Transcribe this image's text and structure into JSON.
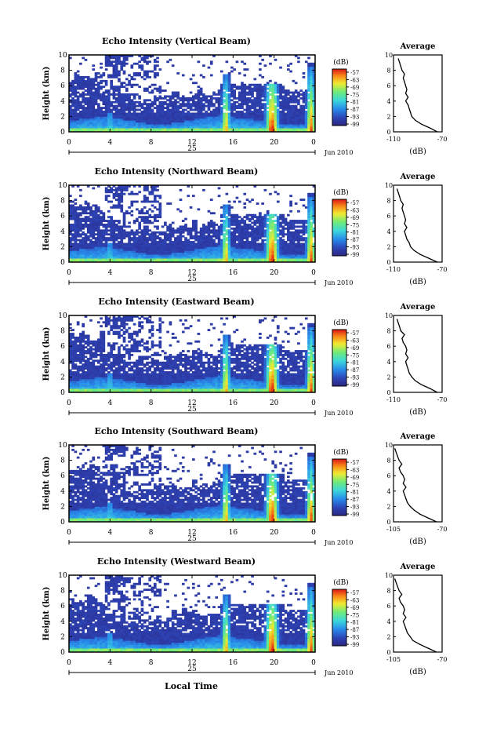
{
  "figure": {
    "xlabel": "Local Time",
    "panel_ylabel": "Height (km)",
    "colorbar_unit": "(dB)",
    "avg_title": "Average",
    "avg_xlabel": "(dB)",
    "day_label": "25",
    "month_label": "Jun 2010"
  },
  "chart_data": [
    {
      "type": "heatmap",
      "title": "Echo Intensity (Vertical Beam)",
      "ylabel": "Height (km)",
      "x_ticks": [
        "0",
        "4",
        "8",
        "12",
        "16",
        "20",
        "0"
      ],
      "x_range": [
        0,
        24
      ],
      "y_ticks": [
        "0",
        "2",
        "4",
        "6",
        "8",
        "10"
      ],
      "y_range": [
        0,
        10
      ],
      "colorbar": {
        "unit": "(dB)",
        "ticks": [
          "-57",
          "-63",
          "-69",
          "-75",
          "-81",
          "-87",
          "-93",
          "-99"
        ]
      },
      "average": {
        "title": "Average",
        "xlabel": "(dB)",
        "x_ticks": [
          "-110",
          "-70"
        ],
        "x_range": [
          -110,
          -70
        ],
        "y_ticks": [
          "0",
          "2",
          "4",
          "6",
          "8",
          "10"
        ],
        "height_km": [
          0.0,
          0.5,
          1.0,
          1.5,
          2.0,
          2.5,
          3.0,
          3.5,
          4.0,
          4.5,
          5.0,
          5.5,
          6.0,
          6.5,
          7.0,
          7.5,
          8.0,
          8.5,
          9.0,
          9.5
        ],
        "intensity_db": [
          -74,
          -80,
          -87,
          -92,
          -95,
          -96,
          -97,
          -98,
          -100,
          -98,
          -100,
          -99,
          -100,
          -101,
          -102,
          -101,
          -103,
          -104,
          -105,
          -106
        ]
      }
    },
    {
      "type": "heatmap",
      "title": "Echo Intensity (Northward Beam)",
      "ylabel": "Height (km)",
      "x_ticks": [
        "0",
        "4",
        "8",
        "12",
        "16",
        "20",
        "0"
      ],
      "x_range": [
        0,
        24
      ],
      "y_ticks": [
        "0",
        "2",
        "4",
        "6",
        "8",
        "10"
      ],
      "y_range": [
        0,
        10
      ],
      "colorbar": {
        "unit": "(dB)",
        "ticks": [
          "-57",
          "-63",
          "-69",
          "-75",
          "-81",
          "-87",
          "-93",
          "-99"
        ]
      },
      "average": {
        "title": "Average",
        "xlabel": "(dB)",
        "x_ticks": [
          "-110",
          "-70"
        ],
        "x_range": [
          -110,
          -70
        ],
        "y_ticks": [
          "0",
          "2",
          "4",
          "6",
          "8",
          "10"
        ],
        "height_km": [
          0.0,
          0.5,
          1.0,
          1.5,
          2.0,
          2.5,
          3.0,
          3.5,
          4.0,
          4.5,
          5.0,
          5.5,
          6.0,
          6.5,
          7.0,
          7.5,
          8.0,
          8.5,
          9.0,
          9.5
        ],
        "intensity_db": [
          -74,
          -81,
          -88,
          -93,
          -96,
          -97,
          -99,
          -100,
          -101,
          -99,
          -101,
          -100,
          -101,
          -102,
          -103,
          -102,
          -104,
          -105,
          -106,
          -107
        ]
      }
    },
    {
      "type": "heatmap",
      "title": "Echo Intensity (Eastward Beam)",
      "ylabel": "Height (km)",
      "x_ticks": [
        "0",
        "4",
        "8",
        "12",
        "16",
        "20",
        "0"
      ],
      "x_range": [
        0,
        24
      ],
      "y_ticks": [
        "0",
        "2",
        "4",
        "6",
        "8",
        "10"
      ],
      "y_range": [
        0,
        10
      ],
      "colorbar": {
        "unit": "(dB)",
        "ticks": [
          "-57",
          "-63",
          "-69",
          "-75",
          "-81",
          "-87",
          "-93",
          "-99"
        ]
      },
      "average": {
        "title": "Average",
        "xlabel": "(dB)",
        "x_ticks": [
          "-110",
          "-70"
        ],
        "x_range": [
          -110,
          -70
        ],
        "y_ticks": [
          "0",
          "2",
          "4",
          "6",
          "8",
          "10"
        ],
        "height_km": [
          0.0,
          0.5,
          1.0,
          1.5,
          2.0,
          2.5,
          3.0,
          3.5,
          4.0,
          4.5,
          5.0,
          5.5,
          6.0,
          6.5,
          7.0,
          7.5,
          8.0,
          8.5,
          9.0,
          9.5
        ],
        "intensity_db": [
          -74,
          -80,
          -87,
          -92,
          -95,
          -97,
          -98,
          -99,
          -100,
          -98,
          -100,
          -99,
          -100,
          -102,
          -103,
          -101,
          -104,
          -105,
          -106,
          -107
        ]
      }
    },
    {
      "type": "heatmap",
      "title": "Echo Intensity (Southward Beam)",
      "ylabel": "Height (km)",
      "x_ticks": [
        "0",
        "4",
        "8",
        "12",
        "16",
        "20",
        "0"
      ],
      "x_range": [
        0,
        24
      ],
      "y_ticks": [
        "0",
        "2",
        "4",
        "6",
        "8",
        "10"
      ],
      "y_range": [
        0,
        10
      ],
      "colorbar": {
        "unit": "(dB)",
        "ticks": [
          "-57",
          "-63",
          "-69",
          "-75",
          "-81",
          "-87",
          "-93",
          "-99"
        ]
      },
      "average": {
        "title": "Average",
        "xlabel": "(dB)",
        "x_ticks": [
          "-105",
          "-70"
        ],
        "x_range": [
          -105,
          -70
        ],
        "y_ticks": [
          "0",
          "2",
          "4",
          "6",
          "8",
          "10"
        ],
        "height_km": [
          0.0,
          0.5,
          1.0,
          1.5,
          2.0,
          2.5,
          3.0,
          3.5,
          4.0,
          4.5,
          5.0,
          5.5,
          6.0,
          6.5,
          7.0,
          7.5,
          8.0,
          8.5,
          9.0,
          9.5
        ],
        "intensity_db": [
          -74,
          -80,
          -86,
          -90,
          -93,
          -95,
          -96,
          -97,
          -98,
          -96,
          -98,
          -97,
          -98,
          -100,
          -101,
          -99,
          -101,
          -102,
          -103,
          -104
        ]
      }
    },
    {
      "type": "heatmap",
      "title": "Echo Intensity (Westward Beam)",
      "ylabel": "Height (km)",
      "x_ticks": [
        "0",
        "4",
        "8",
        "12",
        "16",
        "20",
        "0"
      ],
      "x_range": [
        0,
        24
      ],
      "y_ticks": [
        "0",
        "2",
        "4",
        "6",
        "8",
        "10"
      ],
      "y_range": [
        0,
        10
      ],
      "colorbar": {
        "unit": "(dB)",
        "ticks": [
          "-57",
          "-63",
          "-69",
          "-75",
          "-81",
          "-87",
          "-93",
          "-99"
        ]
      },
      "average": {
        "title": "Average",
        "xlabel": "(dB)",
        "x_ticks": [
          "-105",
          "-70"
        ],
        "x_range": [
          -105,
          -70
        ],
        "y_ticks": [
          "0",
          "2",
          "4",
          "6",
          "8",
          "10"
        ],
        "height_km": [
          0.0,
          0.5,
          1.0,
          1.5,
          2.0,
          2.5,
          3.0,
          3.5,
          4.0,
          4.5,
          5.0,
          5.5,
          6.0,
          6.5,
          7.0,
          7.5,
          8.0,
          8.5,
          9.0,
          9.5
        ],
        "intensity_db": [
          -74,
          -80,
          -86,
          -91,
          -93,
          -95,
          -96,
          -97,
          -98,
          -96,
          -98,
          -97,
          -98,
          -100,
          -101,
          -99,
          -101,
          -102,
          -103,
          -104
        ]
      }
    }
  ]
}
